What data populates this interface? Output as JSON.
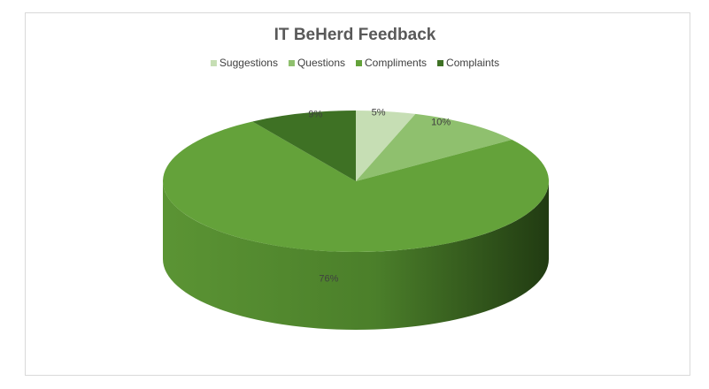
{
  "chart_data": {
    "type": "pie",
    "title": "IT BeHerd Feedback",
    "categories": [
      "Suggestions",
      "Questions",
      "Compliments",
      "Complaints"
    ],
    "values": [
      5,
      10,
      76,
      9
    ],
    "value_labels": [
      "5%",
      "10%",
      "76%",
      "9%"
    ],
    "colors": [
      "#c6deb4",
      "#8fc06e",
      "#64a23a",
      "#3e7124"
    ],
    "legend": "top"
  }
}
